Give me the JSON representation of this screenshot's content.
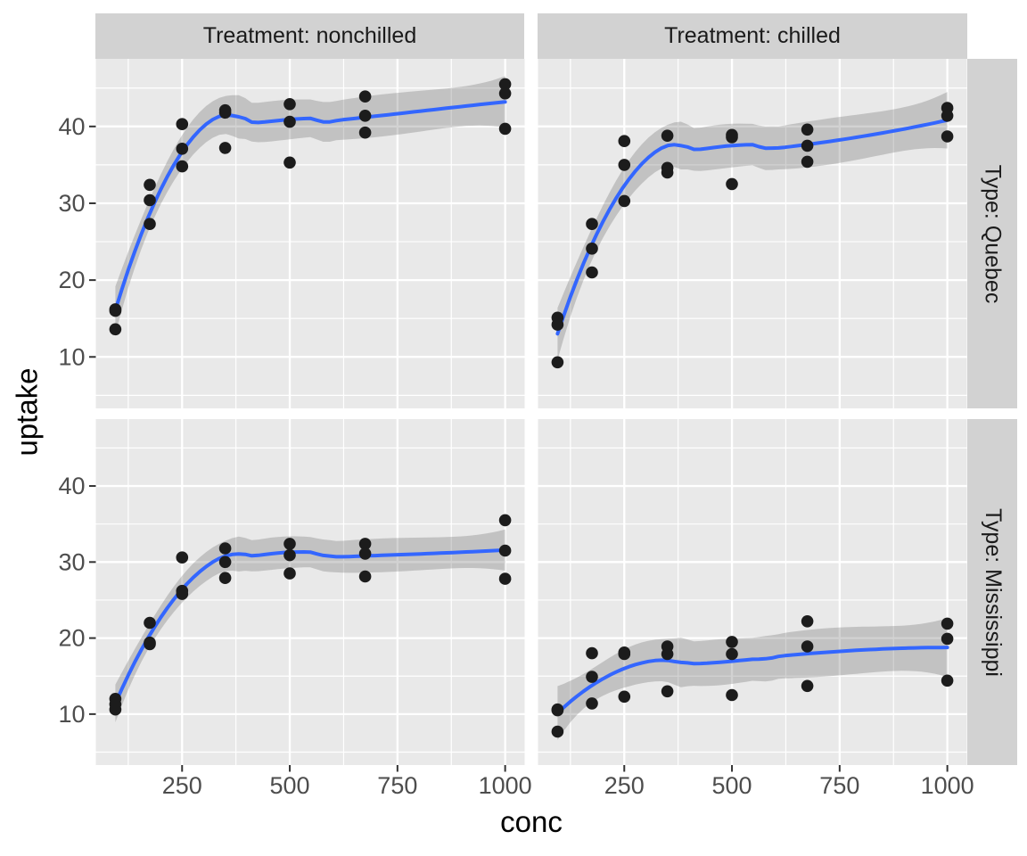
{
  "figure": {
    "background": "#FFFFFF",
    "panel_bg": "#E9E9E9",
    "strip_bg": "#D2D2D2",
    "strip_text_color": "#1A1A1A",
    "grid_color": "#FFFFFF",
    "tick_mark_color": "#333333",
    "tick_label_color": "#4D4D4D",
    "axis_title_color": "#000000",
    "point_color": "#1C1C1C",
    "smooth_line_color": "#3366FF",
    "ribbon_color": "rgba(105,105,105,0.30)"
  },
  "facets": {
    "col_labels": [
      "Treatment: nonchilled",
      "Treatment: chilled"
    ],
    "row_labels": [
      "Type: Quebec",
      "Type: Mississippi"
    ]
  },
  "axes": {
    "x_title": "conc",
    "y_title": "uptake",
    "x_ticks": [
      250,
      500,
      750,
      1000
    ],
    "y_ticks": [
      10,
      20,
      30,
      40
    ],
    "x_minor": [
      125,
      375,
      625,
      875
    ],
    "y_minor": [
      5,
      15,
      25,
      35,
      45
    ],
    "x_domain": [
      49.75,
      1045.25
    ],
    "y_domain": [
      3.3,
      48.8
    ]
  },
  "chart_data": {
    "type": "scatter",
    "x_variable": "conc",
    "y_variable": "uptake",
    "smooth": {
      "method": "loess",
      "span": 0.75,
      "degree": 2,
      "ci_level": 0.95
    },
    "panels": [
      {
        "row": "Type: Quebec",
        "col": "Treatment: nonchilled",
        "conc": [
          95,
          175,
          250,
          350,
          500,
          675,
          1000,
          95,
          175,
          250,
          350,
          500,
          675,
          1000,
          95,
          175,
          250,
          350,
          500,
          675,
          1000
        ],
        "uptake": [
          16.0,
          30.4,
          34.8,
          37.2,
          35.3,
          39.2,
          39.7,
          13.6,
          27.3,
          37.1,
          41.8,
          40.6,
          41.4,
          44.3,
          16.2,
          32.4,
          40.3,
          42.1,
          42.9,
          43.9,
          45.5
        ]
      },
      {
        "row": "Type: Quebec",
        "col": "Treatment: chilled",
        "conc": [
          95,
          175,
          250,
          350,
          500,
          675,
          1000,
          95,
          175,
          250,
          350,
          500,
          675,
          1000,
          95,
          175,
          250,
          350,
          500,
          675,
          1000
        ],
        "uptake": [
          14.2,
          24.1,
          30.3,
          34.6,
          32.5,
          35.4,
          38.7,
          9.3,
          27.3,
          35.0,
          38.8,
          38.6,
          37.5,
          42.4,
          15.1,
          21.0,
          38.1,
          34.0,
          38.9,
          39.6,
          41.4
        ]
      },
      {
        "row": "Type: Mississippi",
        "col": "Treatment: nonchilled",
        "conc": [
          95,
          175,
          250,
          350,
          500,
          675,
          1000,
          95,
          175,
          250,
          350,
          500,
          675,
          1000,
          95,
          175,
          250,
          350,
          500,
          675,
          1000
        ],
        "uptake": [
          10.6,
          19.2,
          26.2,
          30.0,
          30.9,
          32.4,
          35.5,
          12.0,
          22.0,
          30.6,
          31.8,
          32.4,
          31.1,
          31.5,
          11.3,
          19.4,
          25.8,
          27.9,
          28.5,
          28.1,
          27.8
        ]
      },
      {
        "row": "Type: Mississippi",
        "col": "Treatment: chilled",
        "conc": [
          95,
          175,
          250,
          350,
          500,
          675,
          1000,
          95,
          175,
          250,
          350,
          500,
          675,
          1000,
          95,
          175,
          250,
          350,
          500,
          675,
          1000
        ],
        "uptake": [
          10.5,
          14.9,
          18.1,
          18.9,
          19.5,
          22.2,
          21.9,
          7.7,
          11.4,
          12.3,
          13.0,
          12.5,
          13.7,
          14.4,
          10.6,
          18.0,
          17.9,
          17.9,
          17.9,
          18.9,
          19.9
        ]
      }
    ]
  }
}
